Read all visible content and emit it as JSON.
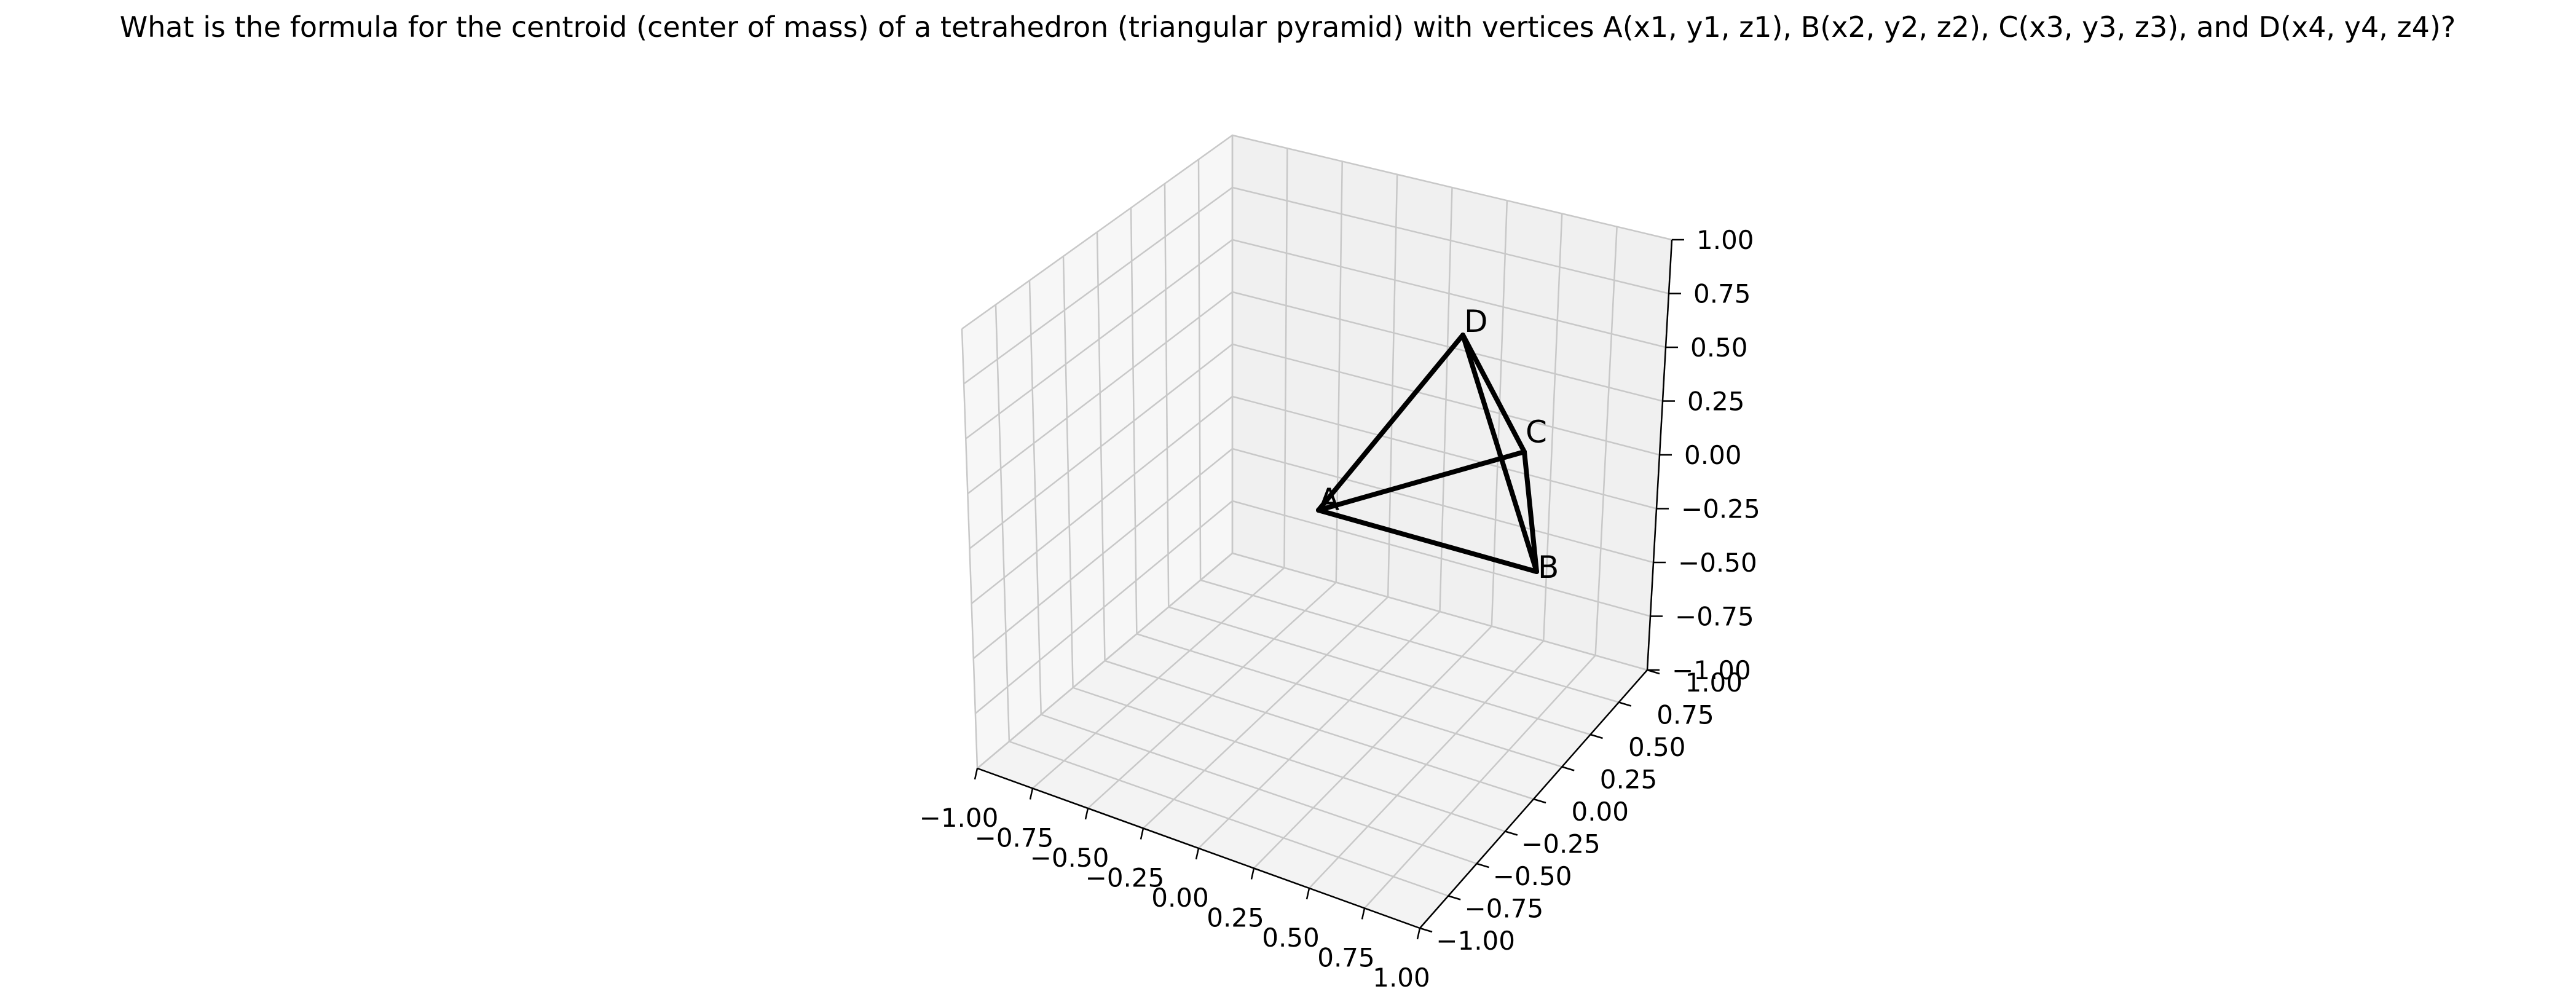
{
  "title": "What is the formula for the centroid (center of mass) of a tetrahedron (triangular pyramid) with vertices A(x1, y1, z1), B(x2, y2, z2), C(x3, y3, z3), and D(x4, y4, z4)?",
  "colors": {
    "background": "#ffffff",
    "pane_left": "#f7f7f7",
    "pane_right": "#f0f0f0",
    "pane_floor": "#f3f3f3",
    "grid": "#c8c8c8",
    "edge": "#000000"
  },
  "axes": {
    "x_ticks": [
      "−1.00",
      "−0.75",
      "−0.50",
      "−0.25",
      "0.00",
      "0.25",
      "0.50",
      "0.75",
      "1.00"
    ],
    "y_ticks": [
      "−1.00",
      "−0.75",
      "−0.50",
      "−0.25",
      "0.00",
      "0.25",
      "0.50",
      "0.75",
      "1.00"
    ],
    "z_ticks": [
      "−1.00",
      "−0.75",
      "−0.50",
      "−0.25",
      "0.00",
      "0.25",
      "0.50",
      "0.75",
      "1.00"
    ]
  },
  "vertices": [
    {
      "label": "A"
    },
    {
      "label": "B"
    },
    {
      "label": "C"
    },
    {
      "label": "D"
    }
  ],
  "edges": [
    {
      "from": "A",
      "to": "B"
    },
    {
      "from": "A",
      "to": "C"
    },
    {
      "from": "A",
      "to": "D"
    },
    {
      "from": "B",
      "to": "C"
    },
    {
      "from": "B",
      "to": "D"
    },
    {
      "from": "C",
      "to": "D"
    }
  ]
}
